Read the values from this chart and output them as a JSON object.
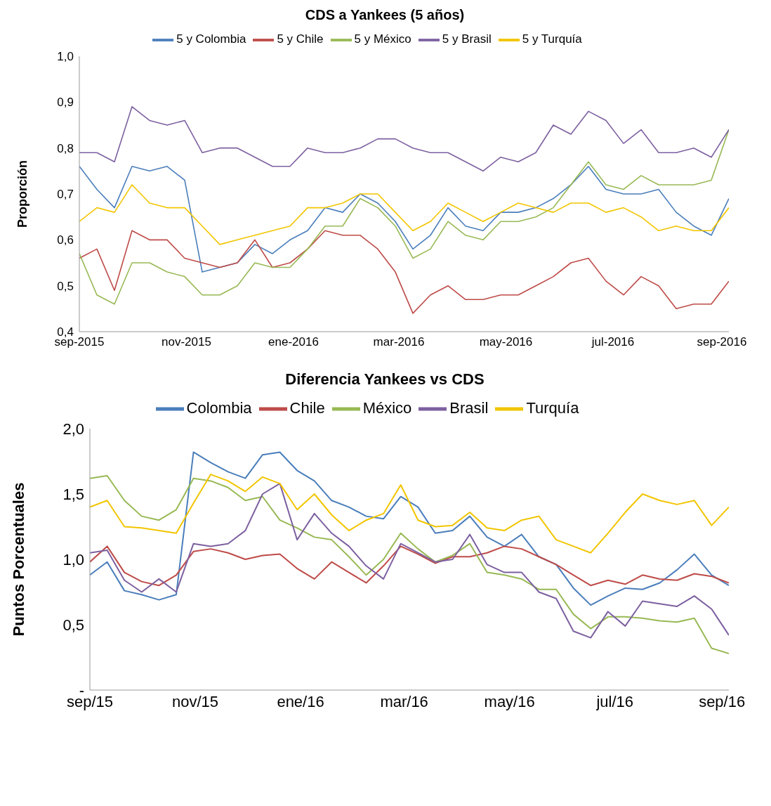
{
  "chart_data": [
    {
      "type": "line",
      "title": "CDS a Yankees (5 años)",
      "ylabel": "Proporción",
      "legend": "top",
      "marker": "none",
      "line_style": "solid",
      "grid": false,
      "x": [
        "2015-09-01",
        "2015-09-11",
        "2015-09-21",
        "2015-10-01",
        "2015-10-11",
        "2015-10-21",
        "2015-10-31",
        "2015-11-10",
        "2015-11-20",
        "2015-11-30",
        "2015-12-10",
        "2015-12-20",
        "2015-12-30",
        "2016-01-09",
        "2016-01-19",
        "2016-01-29",
        "2016-02-08",
        "2016-02-18",
        "2016-02-28",
        "2016-03-09",
        "2016-03-19",
        "2016-03-29",
        "2016-04-08",
        "2016-04-18",
        "2016-04-28",
        "2016-05-08",
        "2016-05-18",
        "2016-05-28",
        "2016-06-07",
        "2016-06-17",
        "2016-06-27",
        "2016-07-07",
        "2016-07-17",
        "2016-07-27",
        "2016-08-06",
        "2016-08-16",
        "2016-08-26",
        "2016-09-05"
      ],
      "xlim": [
        "2015-09-01",
        "2016-09-05"
      ],
      "xticks": [
        {
          "value": "2015-09-01",
          "label": "sep-2015"
        },
        {
          "value": "2015-11-01",
          "label": "nov-2015"
        },
        {
          "value": "2016-01-01",
          "label": "ene-2016"
        },
        {
          "value": "2016-03-01",
          "label": "mar-2016"
        },
        {
          "value": "2016-05-01",
          "label": "may-2016"
        },
        {
          "value": "2016-07-01",
          "label": "jul-2016"
        },
        {
          "value": "2016-09-01",
          "label": "sep-2016"
        }
      ],
      "ylim": [
        0.4,
        1.0
      ],
      "yticks": [
        {
          "value": 0.4,
          "label": "0,4"
        },
        {
          "value": 0.5,
          "label": "0,5"
        },
        {
          "value": 0.6,
          "label": "0,6"
        },
        {
          "value": 0.7,
          "label": "0,7"
        },
        {
          "value": 0.8,
          "label": "0,8"
        },
        {
          "value": 0.9,
          "label": "0,9"
        },
        {
          "value": 1.0,
          "label": "1,0"
        }
      ],
      "series": [
        {
          "name": "5 y Colombia",
          "color": "#4a7ebb",
          "values": [
            0.76,
            0.71,
            0.67,
            0.76,
            0.75,
            0.76,
            0.73,
            0.53,
            0.54,
            0.55,
            0.59,
            0.57,
            0.6,
            0.62,
            0.67,
            0.66,
            0.7,
            0.68,
            0.64,
            0.58,
            0.61,
            0.67,
            0.63,
            0.62,
            0.66,
            0.66,
            0.67,
            0.69,
            0.72,
            0.76,
            0.71,
            0.7,
            0.7,
            0.71,
            0.66,
            0.63,
            0.61,
            0.69
          ]
        },
        {
          "name": "5 y Chile",
          "color": "#be4b48",
          "values": [
            0.56,
            0.58,
            0.49,
            0.62,
            0.6,
            0.6,
            0.56,
            0.55,
            0.54,
            0.55,
            0.6,
            0.54,
            0.55,
            0.58,
            0.62,
            0.61,
            0.61,
            0.58,
            0.53,
            0.44,
            0.48,
            0.5,
            0.47,
            0.47,
            0.48,
            0.48,
            0.5,
            0.52,
            0.55,
            0.56,
            0.51,
            0.48,
            0.52,
            0.5,
            0.45,
            0.46,
            0.46,
            0.51
          ]
        },
        {
          "name": "5 y México",
          "color": "#98b954",
          "values": [
            0.57,
            0.48,
            0.46,
            0.55,
            0.55,
            0.53,
            0.52,
            0.48,
            0.48,
            0.5,
            0.55,
            0.54,
            0.54,
            0.58,
            0.63,
            0.63,
            0.69,
            0.67,
            0.63,
            0.56,
            0.58,
            0.64,
            0.61,
            0.6,
            0.64,
            0.64,
            0.65,
            0.67,
            0.72,
            0.77,
            0.72,
            0.71,
            0.74,
            0.72,
            0.72,
            0.72,
            0.73,
            0.84
          ]
        },
        {
          "name": "5 y Brasil",
          "color": "#7d60a0",
          "values": [
            0.79,
            0.79,
            0.77,
            0.89,
            0.86,
            0.85,
            0.86,
            0.79,
            0.8,
            0.8,
            0.78,
            0.76,
            0.76,
            0.8,
            0.79,
            0.79,
            0.8,
            0.82,
            0.82,
            0.8,
            0.79,
            0.79,
            0.77,
            0.75,
            0.78,
            0.77,
            0.79,
            0.85,
            0.83,
            0.88,
            0.86,
            0.81,
            0.84,
            0.79,
            0.79,
            0.8,
            0.78,
            0.84
          ]
        },
        {
          "name": "5 y Turquía",
          "color": "#f2c500",
          "values": [
            0.64,
            0.67,
            0.66,
            0.72,
            0.68,
            0.67,
            0.67,
            0.63,
            0.59,
            0.6,
            0.61,
            0.62,
            0.63,
            0.67,
            0.67,
            0.68,
            0.7,
            0.7,
            0.66,
            0.62,
            0.64,
            0.68,
            0.66,
            0.64,
            0.66,
            0.68,
            0.67,
            0.66,
            0.68,
            0.68,
            0.66,
            0.67,
            0.65,
            0.62,
            0.63,
            0.62,
            0.62,
            0.67
          ]
        }
      ]
    },
    {
      "type": "line",
      "title": "Diferencia Yankees vs CDS",
      "ylabel": "Puntos Porcentuales",
      "legend": "top",
      "marker": "none",
      "line_style": "solid",
      "grid": false,
      "x": [
        "2015-09-01",
        "2015-09-11",
        "2015-09-21",
        "2015-10-01",
        "2015-10-11",
        "2015-10-21",
        "2015-10-31",
        "2015-11-10",
        "2015-11-20",
        "2015-11-30",
        "2015-12-10",
        "2015-12-20",
        "2015-12-30",
        "2016-01-09",
        "2016-01-19",
        "2016-01-29",
        "2016-02-08",
        "2016-02-18",
        "2016-02-28",
        "2016-03-09",
        "2016-03-19",
        "2016-03-29",
        "2016-04-08",
        "2016-04-18",
        "2016-04-28",
        "2016-05-08",
        "2016-05-18",
        "2016-05-28",
        "2016-06-07",
        "2016-06-17",
        "2016-06-27",
        "2016-07-07",
        "2016-07-17",
        "2016-07-27",
        "2016-08-06",
        "2016-08-16",
        "2016-08-26",
        "2016-09-05"
      ],
      "xlim": [
        "2015-09-01",
        "2016-09-05"
      ],
      "xticks": [
        {
          "value": "2015-09-01",
          "label": "sep/15"
        },
        {
          "value": "2015-11-01",
          "label": "nov/15"
        },
        {
          "value": "2016-01-01",
          "label": "ene/16"
        },
        {
          "value": "2016-03-01",
          "label": "mar/16"
        },
        {
          "value": "2016-05-01",
          "label": "may/16"
        },
        {
          "value": "2016-07-01",
          "label": "jul/16"
        },
        {
          "value": "2016-09-01",
          "label": "sep/16"
        }
      ],
      "ylim": [
        0,
        2.0
      ],
      "yticks": [
        {
          "value": 0,
          "label": "-"
        },
        {
          "value": 0.5,
          "label": "0,5"
        },
        {
          "value": 1.0,
          "label": "1,0"
        },
        {
          "value": 1.5,
          "label": "1,5"
        },
        {
          "value": 2.0,
          "label": "2,0"
        }
      ],
      "series": [
        {
          "name": "Colombia",
          "color": "#4a7ebb",
          "values": [
            0.88,
            0.98,
            0.76,
            0.73,
            0.69,
            0.73,
            1.82,
            1.74,
            1.67,
            1.62,
            1.8,
            1.82,
            1.68,
            1.6,
            1.45,
            1.4,
            1.33,
            1.31,
            1.48,
            1.4,
            1.2,
            1.22,
            1.33,
            1.17,
            1.1,
            1.19,
            1.02,
            0.96,
            0.78,
            0.65,
            0.72,
            0.78,
            0.77,
            0.82,
            0.92,
            1.04,
            0.88,
            0.8
          ]
        },
        {
          "name": "Chile",
          "color": "#be4b48",
          "values": [
            0.98,
            1.1,
            0.9,
            0.83,
            0.8,
            0.88,
            1.06,
            1.08,
            1.05,
            1.0,
            1.03,
            1.04,
            0.93,
            0.85,
            0.98,
            0.9,
            0.82,
            0.95,
            1.1,
            1.04,
            0.97,
            1.02,
            1.02,
            1.05,
            1.1,
            1.08,
            1.02,
            0.96,
            0.88,
            0.8,
            0.84,
            0.81,
            0.88,
            0.85,
            0.84,
            0.89,
            0.87,
            0.82
          ]
        },
        {
          "name": "México",
          "color": "#98b954",
          "values": [
            1.62,
            1.64,
            1.45,
            1.33,
            1.3,
            1.38,
            1.62,
            1.6,
            1.55,
            1.45,
            1.48,
            1.3,
            1.24,
            1.17,
            1.15,
            1.02,
            0.88,
            1.0,
            1.2,
            1.08,
            0.98,
            1.03,
            1.12,
            0.9,
            0.88,
            0.85,
            0.77,
            0.77,
            0.58,
            0.47,
            0.56,
            0.56,
            0.55,
            0.53,
            0.52,
            0.55,
            0.32,
            0.28
          ]
        },
        {
          "name": "Brasil",
          "color": "#7d60a0",
          "values": [
            1.05,
            1.07,
            0.84,
            0.75,
            0.85,
            0.75,
            1.12,
            1.1,
            1.12,
            1.22,
            1.5,
            1.58,
            1.15,
            1.35,
            1.2,
            1.1,
            0.95,
            0.85,
            1.12,
            1.05,
            0.98,
            1.0,
            1.19,
            0.96,
            0.9,
            0.9,
            0.75,
            0.7,
            0.45,
            0.4,
            0.6,
            0.49,
            0.68,
            0.66,
            0.64,
            0.72,
            0.62,
            0.42
          ]
        },
        {
          "name": "Turquía",
          "color": "#f2c500",
          "values": [
            1.4,
            1.45,
            1.25,
            1.24,
            1.22,
            1.2,
            1.43,
            1.65,
            1.6,
            1.52,
            1.63,
            1.58,
            1.38,
            1.5,
            1.34,
            1.22,
            1.3,
            1.35,
            1.57,
            1.3,
            1.25,
            1.26,
            1.36,
            1.24,
            1.22,
            1.3,
            1.33,
            1.15,
            1.1,
            1.05,
            1.2,
            1.36,
            1.5,
            1.45,
            1.42,
            1.45,
            1.26,
            1.4
          ]
        }
      ]
    }
  ]
}
